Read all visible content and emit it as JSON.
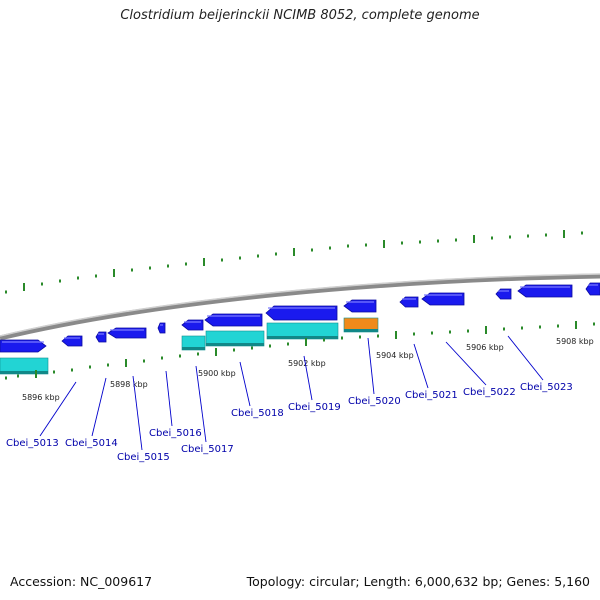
{
  "title": "Clostridium beijerinckii NCIMB 8052, complete genome",
  "footer": {
    "accession": "Accession: NC_009617",
    "topology": "Topology: circular; Length: 6,000,632 bp; Genes: 5,160"
  },
  "colors": {
    "forward_gene": "#1a1aee",
    "reverse_gene": "#22d4d4",
    "rna_gene": "#f08a1a",
    "tick": "#2a8a2a",
    "backbone": "#8a8a8a",
    "label": "#0000aa"
  },
  "kbp_labels": [
    "5896 kbp",
    "5898 kbp",
    "5900 kbp",
    "5902 kbp",
    "5904 kbp",
    "5906 kbp",
    "5908 kbp"
  ],
  "gene_labels": [
    "Cbei_5013",
    "Cbei_5014",
    "Cbei_5015",
    "Cbei_5016",
    "Cbei_5017",
    "Cbei_5018",
    "Cbei_5019",
    "Cbei_5020",
    "Cbei_5021",
    "Cbei_5022",
    "Cbei_5023"
  ]
}
